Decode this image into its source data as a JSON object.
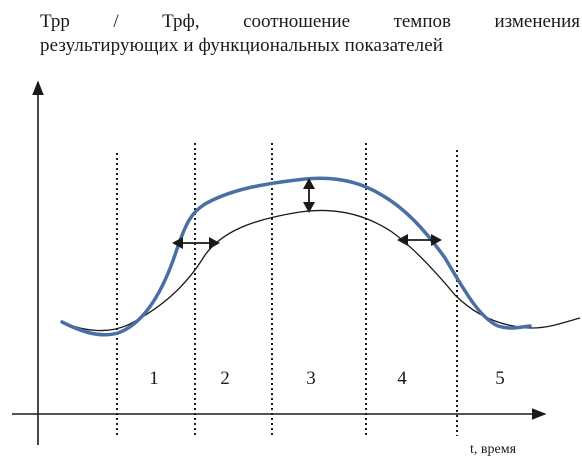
{
  "title": {
    "line1": "Трр / Трф, соотношение темпов изменения",
    "line2": "результирующих и функциональных показателей"
  },
  "x_axis_label": "t, время",
  "zones": [
    "1",
    "2",
    "3",
    "4",
    "5"
  ],
  "colors": {
    "result_curve": "#4a6fa5",
    "functional_curve": "#1a1a1a",
    "axes": "#1a1a1a"
  }
}
